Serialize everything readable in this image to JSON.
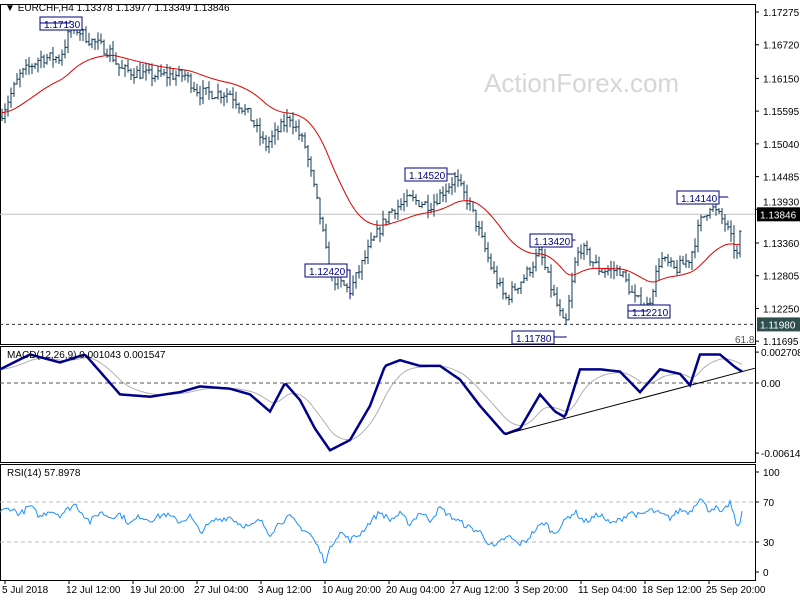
{
  "header": {
    "symbol": "EURCHF,H4",
    "ohlc": "1.13378 1.13977 1.13349 1.13846"
  },
  "watermark": "ActionForex.com",
  "chart_data": [
    {
      "type": "line",
      "title": "EURCHF,H4",
      "subtitle": "candles with moving average",
      "y_ticks": [
        "1.17275",
        "1.16720",
        "1.16150",
        "1.15595",
        "1.15040",
        "1.14485",
        "1.13930",
        "1.13360",
        "1.12805",
        "1.12250",
        "1.11695"
      ],
      "ylim": [
        1.11695,
        1.17275
      ],
      "x_ticks": [
        "5 Jul 2018",
        "12 Jul 12:00",
        "19 Jul 20:00",
        "27 Jul 04:00",
        "3 Aug 12:00",
        "10 Aug 20:00",
        "20 Aug 04:00",
        "27 Aug 12:00",
        "3 Sep 20:00",
        "11 Sep 04:00",
        "18 Sep 12:00",
        "25 Sep 20:00"
      ],
      "price_path": [
        [
          0,
          1.155
        ],
        [
          20,
          1.162
        ],
        [
          40,
          1.165
        ],
        [
          60,
          1.165
        ],
        [
          72,
          1.1705
        ],
        [
          90,
          1.168
        ],
        [
          110,
          1.166
        ],
        [
          120,
          1.163
        ],
        [
          150,
          1.162
        ],
        [
          185,
          1.162
        ],
        [
          200,
          1.159
        ],
        [
          230,
          1.159
        ],
        [
          250,
          1.155
        ],
        [
          265,
          1.15
        ],
        [
          290,
          1.155
        ],
        [
          305,
          1.15
        ],
        [
          320,
          1.138
        ],
        [
          330,
          1.128
        ],
        [
          350,
          1.1255
        ],
        [
          370,
          1.133
        ],
        [
          390,
          1.139
        ],
        [
          410,
          1.141
        ],
        [
          430,
          1.14
        ],
        [
          455,
          1.1445
        ],
        [
          470,
          1.14
        ],
        [
          490,
          1.13
        ],
        [
          505,
          1.124
        ],
        [
          525,
          1.128
        ],
        [
          540,
          1.132
        ],
        [
          553,
          1.125
        ],
        [
          565,
          1.119
        ],
        [
          575,
          1.13
        ],
        [
          580,
          1.133
        ],
        [
          600,
          1.129
        ],
        [
          620,
          1.129
        ],
        [
          635,
          1.124
        ],
        [
          648,
          1.1228
        ],
        [
          660,
          1.131
        ],
        [
          675,
          1.129
        ],
        [
          690,
          1.131
        ],
        [
          700,
          1.137
        ],
        [
          710,
          1.14
        ],
        [
          725,
          1.137
        ],
        [
          738,
          1.131
        ],
        [
          742,
          1.13846
        ]
      ],
      "annotations": [
        {
          "label": "1.17130",
          "price": 1.1713
        },
        {
          "label": "1.14520",
          "price": 1.1452
        },
        {
          "label": "1.12420",
          "price": 1.1242
        },
        {
          "label": "1.13420",
          "price": 1.1342
        },
        {
          "label": "1.14140",
          "price": 1.1414
        },
        {
          "label": "1.12210",
          "price": 1.1221
        },
        {
          "label": "1.11780",
          "price": 1.1178
        }
      ],
      "current_price": {
        "label": "1.13846",
        "value": 1.13846
      },
      "support_level": {
        "label": "1.11980",
        "value": 1.1198
      },
      "fib_label": "61.8",
      "colors": {
        "bars": "#123a56",
        "ma": "#e00000",
        "label_border": "#00007f"
      }
    },
    {
      "type": "line",
      "title": "MACD(12,26,9) 0.001043 0.001547",
      "y_ticks": [
        "0.002708",
        "0.00",
        "-0.006148"
      ],
      "ylim": [
        -0.006148,
        0.002708
      ],
      "macd_path": [
        [
          0,
          0.0012
        ],
        [
          30,
          0.0025
        ],
        [
          60,
          0.0018
        ],
        [
          85,
          0.0025
        ],
        [
          100,
          0.001
        ],
        [
          120,
          -0.001
        ],
        [
          150,
          -0.0012
        ],
        [
          180,
          -0.0008
        ],
        [
          200,
          -0.0003
        ],
        [
          230,
          -0.0005
        ],
        [
          250,
          -0.001
        ],
        [
          270,
          -0.0025
        ],
        [
          285,
          0.0
        ],
        [
          300,
          -0.0015
        ],
        [
          315,
          -0.004
        ],
        [
          330,
          -0.0059
        ],
        [
          350,
          -0.005
        ],
        [
          370,
          -0.002
        ],
        [
          385,
          0.0015
        ],
        [
          400,
          0.002
        ],
        [
          420,
          0.0015
        ],
        [
          440,
          0.0015
        ],
        [
          460,
          0.0003
        ],
        [
          480,
          -0.002
        ],
        [
          505,
          -0.0045
        ],
        [
          520,
          -0.004
        ],
        [
          540,
          -0.001
        ],
        [
          555,
          -0.0025
        ],
        [
          565,
          -0.003
        ],
        [
          580,
          0.0012
        ],
        [
          600,
          0.0012
        ],
        [
          620,
          0.001
        ],
        [
          640,
          -0.0008
        ],
        [
          660,
          0.0012
        ],
        [
          680,
          0.0008
        ],
        [
          690,
          -0.0002
        ],
        [
          700,
          0.0025
        ],
        [
          720,
          0.0025
        ],
        [
          735,
          0.0014
        ],
        [
          742,
          0.001
        ]
      ],
      "trendline": [
        [
          505,
          -0.0045
        ],
        [
          755,
          0.0013
        ]
      ],
      "colors": {
        "macd": "#00008b",
        "signal": "#b0b0b0"
      }
    },
    {
      "type": "line",
      "title": "RSI(14) 57.8978",
      "y_ticks": [
        "100",
        "70",
        "30",
        "0"
      ],
      "ylim": [
        0,
        100
      ],
      "levels": [
        70,
        30
      ],
      "rsi_path": [
        [
          0,
          60
        ],
        [
          10,
          64
        ],
        [
          20,
          58
        ],
        [
          30,
          66
        ],
        [
          40,
          55
        ],
        [
          50,
          62
        ],
        [
          60,
          57
        ],
        [
          75,
          68
        ],
        [
          90,
          50
        ],
        [
          100,
          60
        ],
        [
          110,
          55
        ],
        [
          120,
          58
        ],
        [
          130,
          48
        ],
        [
          140,
          56
        ],
        [
          150,
          52
        ],
        [
          165,
          58
        ],
        [
          180,
          50
        ],
        [
          190,
          56
        ],
        [
          200,
          40
        ],
        [
          215,
          52
        ],
        [
          230,
          55
        ],
        [
          240,
          48
        ],
        [
          250,
          45
        ],
        [
          260,
          52
        ],
        [
          270,
          38
        ],
        [
          280,
          50
        ],
        [
          290,
          55
        ],
        [
          300,
          45
        ],
        [
          310,
          38
        ],
        [
          318,
          25
        ],
        [
          325,
          10
        ],
        [
          333,
          30
        ],
        [
          340,
          40
        ],
        [
          350,
          32
        ],
        [
          360,
          38
        ],
        [
          370,
          50
        ],
        [
          380,
          60
        ],
        [
          390,
          52
        ],
        [
          400,
          58
        ],
        [
          410,
          48
        ],
        [
          420,
          60
        ],
        [
          430,
          52
        ],
        [
          440,
          64
        ],
        [
          450,
          56
        ],
        [
          460,
          50
        ],
        [
          470,
          44
        ],
        [
          480,
          40
        ],
        [
          488,
          30
        ],
        [
          495,
          24
        ],
        [
          503,
          33
        ],
        [
          510,
          35
        ],
        [
          518,
          28
        ],
        [
          525,
          30
        ],
        [
          535,
          42
        ],
        [
          545,
          50
        ],
        [
          553,
          38
        ],
        [
          560,
          45
        ],
        [
          568,
          55
        ],
        [
          575,
          60
        ],
        [
          585,
          50
        ],
        [
          600,
          58
        ],
        [
          610,
          48
        ],
        [
          620,
          52
        ],
        [
          630,
          60
        ],
        [
          640,
          56
        ],
        [
          650,
          62
        ],
        [
          660,
          58
        ],
        [
          670,
          54
        ],
        [
          680,
          62
        ],
        [
          690,
          60
        ],
        [
          700,
          75
        ],
        [
          708,
          62
        ],
        [
          715,
          65
        ],
        [
          722,
          58
        ],
        [
          730,
          70
        ],
        [
          735,
          52
        ],
        [
          738,
          44
        ],
        [
          742,
          58
        ]
      ],
      "colors": {
        "rsi": "#1e90ff"
      }
    }
  ]
}
